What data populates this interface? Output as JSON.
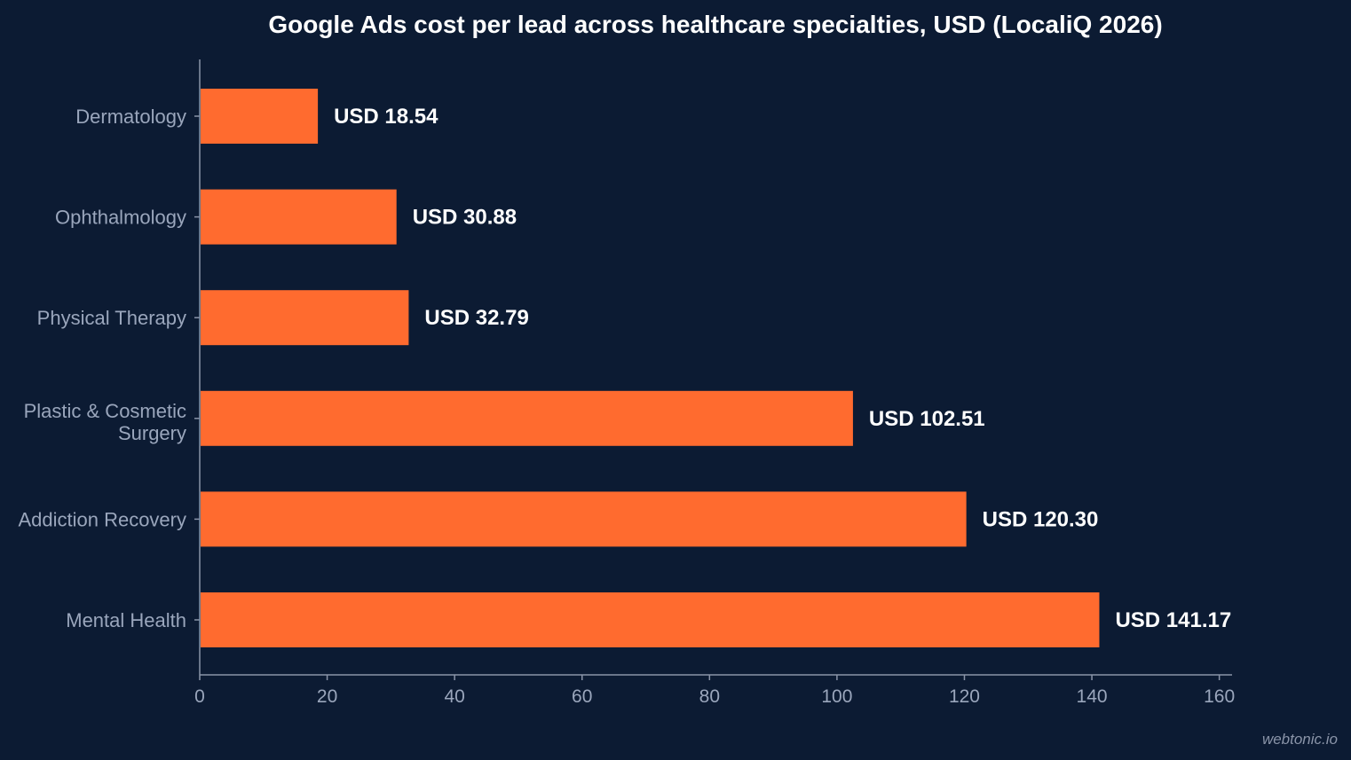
{
  "chart_data": {
    "type": "bar",
    "orientation": "horizontal",
    "title": "Google Ads cost per lead across healthcare specialties, USD (LocaliQ 2026)",
    "xlabel": "",
    "ylabel": "",
    "categories": [
      "Dermatology",
      "Ophthalmology",
      "Physical Therapy",
      "Plastic & Cosmetic Surgery",
      "Addiction Recovery",
      "Mental Health"
    ],
    "values": [
      18.54,
      30.88,
      32.79,
      102.51,
      120.3,
      141.17
    ],
    "value_labels": [
      "USD 18.54",
      "USD 30.88",
      "USD 32.79",
      "USD 102.51",
      "USD 120.30",
      "USD 141.17"
    ],
    "xlim": [
      0,
      162
    ],
    "xticks": [
      0,
      20,
      40,
      60,
      80,
      100,
      120,
      140,
      160
    ],
    "grid": false,
    "legend": "none"
  },
  "colors": {
    "background": "#0c1b33",
    "bar": "#ff6b2f",
    "axis": "#8a94a8",
    "label": "#9aa6bc",
    "value_text": "#ffffff"
  },
  "watermark": "webtonic.io"
}
